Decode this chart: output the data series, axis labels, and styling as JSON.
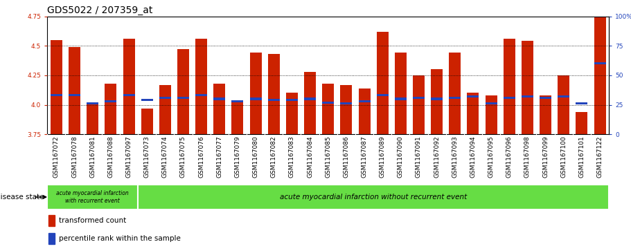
{
  "title": "GDS5022 / 207359_at",
  "samples": [
    "GSM1167072",
    "GSM1167078",
    "GSM1167081",
    "GSM1167088",
    "GSM1167097",
    "GSM1167073",
    "GSM1167074",
    "GSM1167075",
    "GSM1167076",
    "GSM1167077",
    "GSM1167079",
    "GSM1167080",
    "GSM1167082",
    "GSM1167083",
    "GSM1167084",
    "GSM1167085",
    "GSM1167086",
    "GSM1167087",
    "GSM1167089",
    "GSM1167090",
    "GSM1167091",
    "GSM1167092",
    "GSM1167093",
    "GSM1167094",
    "GSM1167095",
    "GSM1167096",
    "GSM1167098",
    "GSM1167099",
    "GSM1167100",
    "GSM1167101",
    "GSM1167122"
  ],
  "bar_values": [
    4.55,
    4.49,
    4.02,
    4.18,
    4.56,
    3.97,
    4.17,
    4.47,
    4.56,
    4.18,
    4.03,
    4.44,
    4.43,
    4.1,
    4.28,
    4.18,
    4.17,
    4.14,
    4.62,
    4.44,
    4.25,
    4.3,
    4.44,
    4.1,
    4.08,
    4.56,
    4.54,
    4.08,
    4.25,
    3.94,
    4.75
  ],
  "blue_values": [
    4.08,
    4.08,
    4.01,
    4.03,
    4.08,
    4.04,
    4.06,
    4.06,
    4.08,
    4.05,
    4.03,
    4.05,
    4.04,
    4.04,
    4.05,
    4.02,
    4.01,
    4.03,
    4.08,
    4.05,
    4.06,
    4.05,
    4.06,
    4.07,
    4.01,
    4.06,
    4.07,
    4.06,
    4.07,
    4.01,
    4.35
  ],
  "bar_color": "#cc2200",
  "blue_color": "#2244bb",
  "ymin": 3.75,
  "ymax": 4.75,
  "y_ticks_left": [
    3.75,
    4.0,
    4.25,
    4.5,
    4.75
  ],
  "y_ticks_right_vals": [
    0,
    25,
    50,
    75,
    100
  ],
  "group1_count": 5,
  "group1_label": "acute myocardial infarction\nwith recurrent event",
  "group2_label": "acute myocardial infarction without recurrent event",
  "disease_state_label": "disease state",
  "legend1": "transformed count",
  "legend2": "percentile rank within the sample",
  "plot_bg_color": "#cccccc",
  "green_color": "#66dd44",
  "title_fontsize": 10,
  "tick_fontsize": 6.5,
  "bar_width": 0.65
}
